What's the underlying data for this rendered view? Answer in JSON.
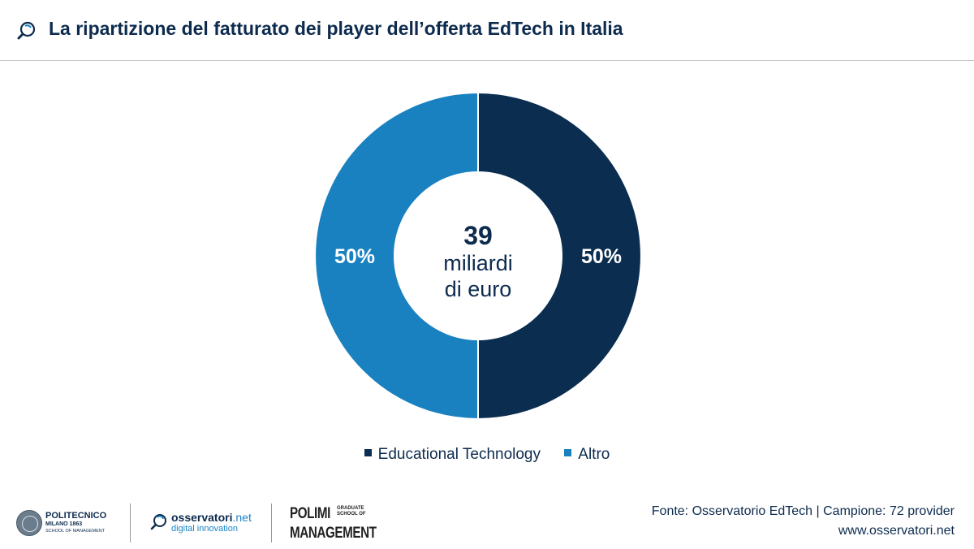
{
  "header": {
    "title": "La ripartizione del fatturato dei player dell’offerta EdTech in Italia"
  },
  "chart_data": {
    "type": "pie",
    "style": "donut",
    "center_value": "39",
    "center_unit_line1": "miliardi",
    "center_unit_line2": "di euro",
    "series": [
      {
        "name": "Educational Technology",
        "value": 50,
        "label": "50%",
        "color": "#0a2d50"
      },
      {
        "name": "Altro",
        "value": 50,
        "label": "50%",
        "color": "#1a81c1"
      }
    ],
    "legend": [
      "Educational Technology",
      "Altro"
    ],
    "legend_placement": "bottom"
  },
  "footer": {
    "logos": {
      "polimi_line1": "POLITECNICO",
      "polimi_line2": "MILANO 1863",
      "polimi_line3": "SCHOOL OF MANAGEMENT",
      "osservatori_main": "osservatori",
      "osservatori_tld": ".net",
      "osservatori_sub": "digital innovation",
      "gsom_line1": "POLIMI",
      "gsom_line2": "MANAGEMENT",
      "gsom_small": "GRADUATE SCHOOL OF"
    },
    "source": "Fonte: Osservatorio EdTech | Campione: 72 provider",
    "website": "www.osservatori.net"
  },
  "colors": {
    "navy": "#0d2b4e",
    "blue": "#1a81c1"
  }
}
